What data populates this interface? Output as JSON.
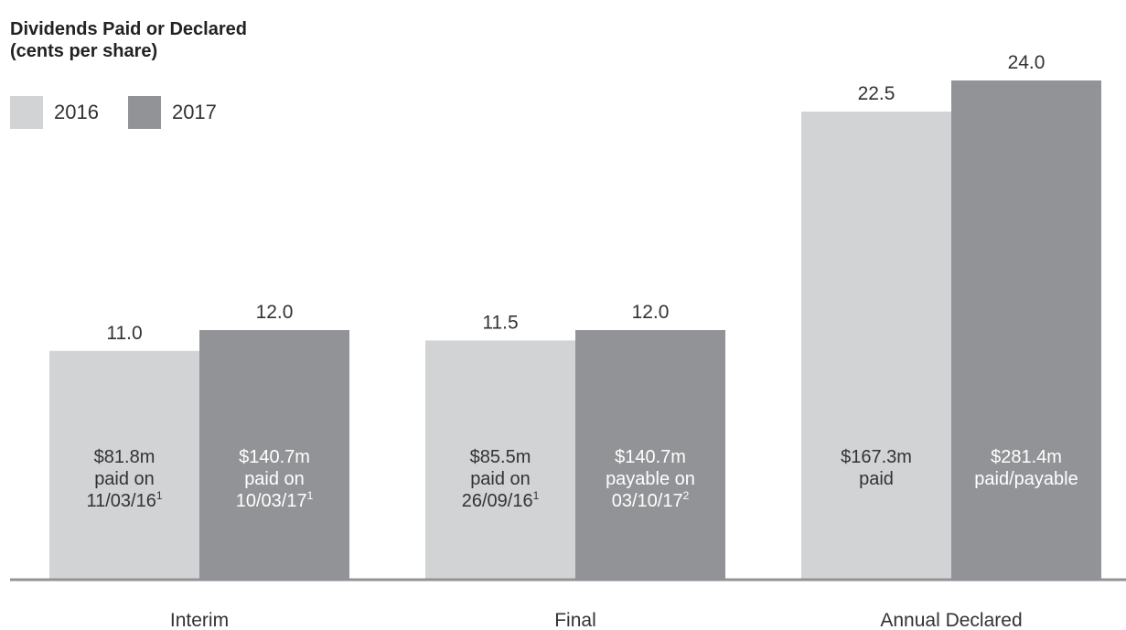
{
  "title_line1": "Dividends Paid or Declared",
  "title_line2": "(cents per share)",
  "colors": {
    "2016": "#d2d3d5",
    "2017": "#929396",
    "axis": "#929396"
  },
  "legend": [
    {
      "label": "2016",
      "color": "#d2d3d5"
    },
    {
      "label": "2017",
      "color": "#929396"
    }
  ],
  "chart_data": {
    "type": "bar",
    "categories": [
      "Interim",
      "Final",
      "Annual Declared"
    ],
    "series": [
      {
        "name": "2016",
        "values": [
          11.0,
          11.5,
          22.5
        ]
      },
      {
        "name": "2017",
        "values": [
          12.0,
          12.0,
          24.0
        ]
      }
    ],
    "value_labels": [
      [
        "11.0",
        "11.5",
        "22.5"
      ],
      [
        "12.0",
        "12.0",
        "24.0"
      ]
    ],
    "bar_annotations": [
      [
        [
          [
            "$81.8m",
            ""
          ],
          [
            "paid on",
            ""
          ],
          [
            "11/03/16",
            "1"
          ]
        ],
        [
          [
            "$85.5m",
            ""
          ],
          [
            "paid on",
            ""
          ],
          [
            "26/09/16",
            "1"
          ]
        ],
        [
          [
            "$167.3m",
            ""
          ],
          [
            "paid",
            ""
          ]
        ]
      ],
      [
        [
          [
            "$140.7m",
            ""
          ],
          [
            "paid on",
            ""
          ],
          [
            "10/03/17",
            "1"
          ]
        ],
        [
          [
            "$140.7m",
            ""
          ],
          [
            "payable on",
            ""
          ],
          [
            "03/10/17",
            "2"
          ]
        ],
        [
          [
            "$281.4m",
            ""
          ],
          [
            "paid/payable",
            ""
          ]
        ]
      ]
    ],
    "ylim": [
      0,
      24.0
    ],
    "grid": false,
    "legend_position": "top-left"
  }
}
